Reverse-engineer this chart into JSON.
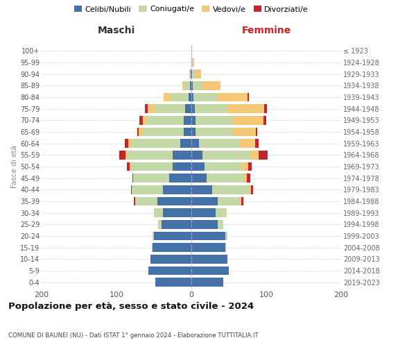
{
  "age_groups": [
    "0-4",
    "5-9",
    "10-14",
    "15-19",
    "20-24",
    "25-29",
    "30-34",
    "35-39",
    "40-44",
    "45-49",
    "50-54",
    "55-59",
    "60-64",
    "65-69",
    "70-74",
    "75-79",
    "80-84",
    "85-89",
    "90-94",
    "95-99",
    "100+"
  ],
  "birth_years": [
    "2019-2023",
    "2014-2018",
    "2009-2013",
    "2004-2008",
    "1999-2003",
    "1994-1998",
    "1989-1993",
    "1984-1988",
    "1979-1983",
    "1974-1978",
    "1969-1973",
    "1964-1968",
    "1959-1963",
    "1954-1958",
    "1949-1953",
    "1944-1948",
    "1939-1943",
    "1934-1938",
    "1929-1933",
    "1924-1928",
    "≤ 1923"
  ],
  "males": {
    "celibi": [
      48,
      57,
      55,
      52,
      50,
      40,
      38,
      45,
      38,
      30,
      25,
      25,
      15,
      10,
      10,
      8,
      4,
      2,
      1,
      0,
      0
    ],
    "coniugati": [
      0,
      0,
      0,
      1,
      2,
      4,
      12,
      30,
      42,
      48,
      55,
      60,
      65,
      55,
      50,
      40,
      25,
      8,
      2,
      0,
      0
    ],
    "vedovi": [
      0,
      0,
      0,
      0,
      0,
      0,
      0,
      0,
      0,
      0,
      2,
      3,
      4,
      5,
      5,
      10,
      8,
      2,
      0,
      0,
      0
    ],
    "divorziati": [
      0,
      0,
      0,
      0,
      0,
      0,
      0,
      2,
      1,
      1,
      4,
      8,
      5,
      2,
      4,
      4,
      0,
      0,
      0,
      0,
      0
    ]
  },
  "females": {
    "nubili": [
      43,
      50,
      48,
      45,
      45,
      35,
      32,
      35,
      28,
      20,
      18,
      15,
      10,
      6,
      6,
      5,
      3,
      2,
      1,
      0,
      0
    ],
    "coniugate": [
      0,
      0,
      0,
      1,
      3,
      8,
      15,
      30,
      50,
      50,
      50,
      65,
      55,
      50,
      50,
      42,
      32,
      12,
      4,
      2,
      0
    ],
    "vedove": [
      0,
      0,
      0,
      0,
      0,
      0,
      0,
      2,
      2,
      4,
      8,
      10,
      20,
      30,
      40,
      50,
      40,
      25,
      8,
      2,
      1
    ],
    "divorziate": [
      0,
      0,
      0,
      0,
      0,
      0,
      0,
      2,
      2,
      5,
      5,
      12,
      5,
      2,
      4,
      4,
      2,
      0,
      0,
      0,
      0
    ]
  },
  "colors": {
    "celibi": "#4472a8",
    "coniugati": "#c5d9a8",
    "vedovi": "#f5c878",
    "divorziati": "#c0262b"
  },
  "title": "Popolazione per età, sesso e stato civile - 2024",
  "subtitle": "COMUNE DI BAUNEI (NU) - Dati ISTAT 1° gennaio 2024 - Elaborazione TUTTITALIA.IT",
  "xlabel_left": "Maschi",
  "xlabel_right": "Femmine",
  "ylabel_left": "Fasce di età",
  "xlim": 200,
  "legend_labels": [
    "Celibi/Nubili",
    "Coniugati/e",
    "Vedovi/e",
    "Divorziati/e"
  ],
  "bg_color": "#ffffff",
  "bar_height": 0.75
}
